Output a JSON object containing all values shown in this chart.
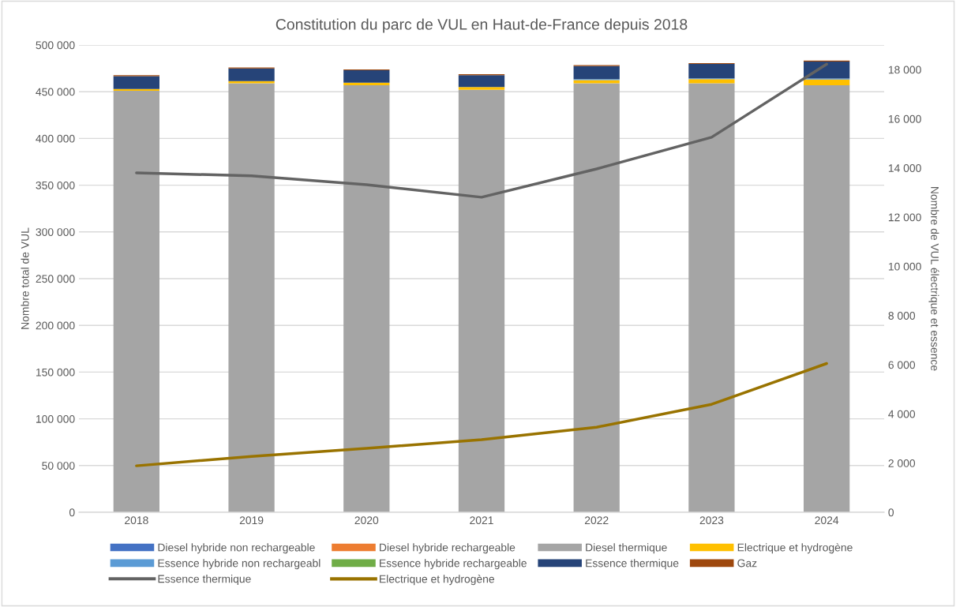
{
  "chart_data": {
    "type": "bar",
    "stacked": true,
    "title": "Constitution du parc de VUL en Haut-de-France depuis 2018",
    "ylabel": "Nombre total de VUL",
    "y2label": "Nombre de VUL électrique et essence",
    "categories": [
      "2018",
      "2019",
      "2020",
      "2021",
      "2022",
      "2023",
      "2024"
    ],
    "series": [
      {
        "name": "Diesel hybride non rechargeable",
        "color": "#4472c4",
        "values": [
          null,
          null,
          null,
          null,
          null,
          null,
          null
        ]
      },
      {
        "name": "Diesel hybride rechargeable",
        "color": "#ed7d31",
        "values": [
          null,
          null,
          null,
          null,
          null,
          null,
          null
        ]
      },
      {
        "name": "Diesel thermique",
        "color": "#a5a5a5",
        "values": [
          451000,
          459000,
          457000,
          452000,
          459000,
          459000,
          457000
        ]
      },
      {
        "name": "Electrique et hydrogène",
        "color": "#ffc000",
        "values": [
          1890,
          2270,
          2600,
          2950,
          3460,
          4390,
          6050
        ]
      },
      {
        "name": "Essence hybride non rechargeabl",
        "color": "#5b9bd5",
        "values": [
          null,
          null,
          null,
          null,
          1000,
          1000,
          1000
        ]
      },
      {
        "name": "Essence hybride rechargeable",
        "color": "#70ad47",
        "values": [
          null,
          null,
          null,
          null,
          null,
          null,
          null
        ]
      },
      {
        "name": "Essence thermique",
        "color": "#264478",
        "values": [
          13800,
          13680,
          13320,
          12810,
          13960,
          15250,
          18220
        ]
      },
      {
        "name": "Gaz",
        "color": "#9e480e",
        "values": [
          900,
          1000,
          900,
          900,
          1000,
          1000,
          1000
        ]
      },
      {
        "name": "Essence thermique",
        "type": "line",
        "axis": "y2",
        "color": "#636363",
        "values": [
          13800,
          13680,
          13320,
          12810,
          13960,
          15250,
          18220
        ]
      },
      {
        "name": "Electrique et hydrogène",
        "type": "line",
        "axis": "y2",
        "color": "#997300",
        "values": [
          1890,
          2270,
          2600,
          2950,
          3460,
          4390,
          6050
        ]
      }
    ],
    "ylim": [
      0,
      500000
    ],
    "yticks": [
      0,
      {
        "value": 50000,
        "label": "50 000"
      },
      {
        "value": 100000,
        "label": "100 000"
      },
      {
        "value": 150000,
        "label": "150 000"
      },
      {
        "value": 200000,
        "label": "200 000"
      },
      {
        "value": 250000,
        "label": "250 000"
      },
      {
        "value": 300000,
        "label": "300 000"
      },
      {
        "value": 350000,
        "label": "350 000"
      },
      {
        "value": 400000,
        "label": "400 000"
      },
      {
        "value": 450000,
        "label": "450 000"
      },
      {
        "value": 500000,
        "label": "500 000"
      }
    ],
    "y2lim": [
      0,
      19000
    ],
    "y2ticks": [
      0,
      {
        "value": 2000,
        "label": "2 000"
      },
      {
        "value": 4000,
        "label": "4 000"
      },
      {
        "value": 6000,
        "label": "6 000"
      },
      {
        "value": 8000,
        "label": "8 000"
      },
      {
        "value": 10000,
        "label": "10 000"
      },
      {
        "value": 12000,
        "label": "12 000"
      },
      {
        "value": 14000,
        "label": "14 000"
      },
      {
        "value": 16000,
        "label": "16 000"
      },
      {
        "value": 18000,
        "label": "18 000"
      }
    ],
    "grid": "y",
    "legend": "bottom",
    "marker": "none",
    "line_style": "solid"
  }
}
